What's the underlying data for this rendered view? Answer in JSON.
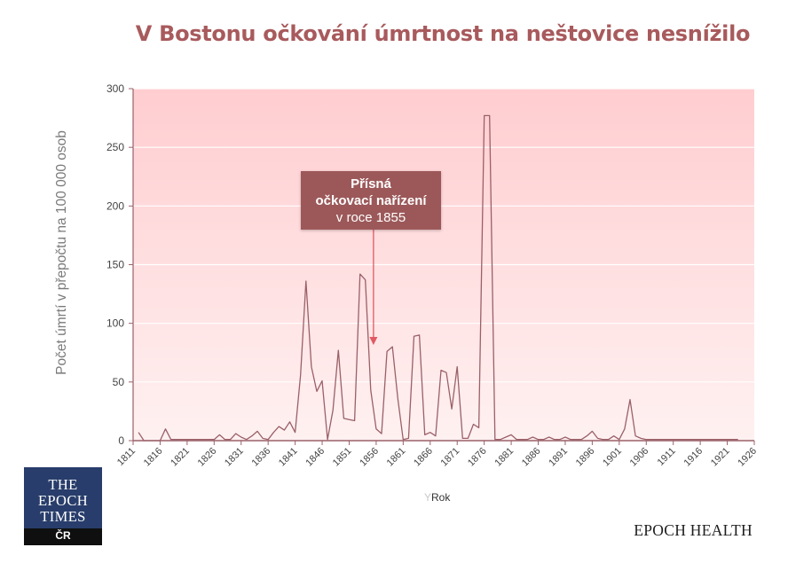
{
  "title": "V Bostonu očkování úmrtnost na neštovice nesnížilo",
  "callout": {
    "line1": "Přísná",
    "line2": "očkovací nařízení",
    "line3": "v roce 1855",
    "x": 1855.5,
    "y": 80
  },
  "logo": {
    "line1": "THE",
    "line2": "EPOCH",
    "line3": "TIMES",
    "country": "ČR"
  },
  "brand": "EPOCH HEALTH",
  "colors": {
    "title": "#a85a5c",
    "series": "#9a6068",
    "callout": "#9c5859",
    "arrow": "#e05a63",
    "plot_top": "#ffcdd0",
    "plot_bottom": "#fff1f1",
    "logo": "#283d6b"
  },
  "chart_data": {
    "type": "line",
    "title": "V Bostonu očkování úmrtnost na neštovice nesnížilo",
    "xlabel": "Rok",
    "xlabel_ghost": "Y",
    "ylabel": "Počet úmrtí  v přepočtu na 100 000 osob",
    "xlim": [
      1811,
      1926
    ],
    "ylim": [
      0,
      300
    ],
    "grid": true,
    "xticks": [
      1811,
      1816,
      1821,
      1826,
      1831,
      1836,
      1841,
      1846,
      1851,
      1856,
      1861,
      1866,
      1871,
      1876,
      1881,
      1886,
      1891,
      1896,
      1901,
      1906,
      1911,
      1916,
      1921,
      1926
    ],
    "yticks": [
      0,
      50,
      100,
      150,
      200,
      250,
      300
    ],
    "series": [
      {
        "x": [
          1812,
          1813,
          1814,
          1815,
          1816,
          1817,
          1818,
          1819,
          1820,
          1821,
          1822,
          1823,
          1824,
          1825,
          1826,
          1827,
          1828,
          1829,
          1830,
          1831,
          1832,
          1833,
          1834,
          1835,
          1836,
          1837,
          1838,
          1839,
          1840,
          1841,
          1842,
          1843,
          1844,
          1845,
          1846,
          1847,
          1848,
          1849,
          1850,
          1851,
          1852,
          1853,
          1854,
          1855,
          1856,
          1857,
          1858,
          1859,
          1860,
          1861,
          1862,
          1863,
          1864,
          1865,
          1866,
          1867,
          1868,
          1869,
          1870,
          1871,
          1872,
          1873,
          1874,
          1875,
          1876,
          1877,
          1878,
          1879,
          1880,
          1881,
          1882,
          1883,
          1884,
          1885,
          1886,
          1887,
          1888,
          1889,
          1890,
          1891,
          1892,
          1893,
          1894,
          1895,
          1896,
          1897,
          1898,
          1899,
          1900,
          1901,
          1902,
          1903,
          1904,
          1905,
          1906,
          1907,
          1908,
          1909,
          1910,
          1911,
          1912,
          1913,
          1914,
          1915,
          1916,
          1917,
          1918,
          1919,
          1920,
          1921,
          1922,
          1923
        ],
        "y": [
          7,
          0,
          0,
          0,
          0,
          10,
          1,
          1,
          1,
          1,
          1,
          1,
          1,
          1,
          1,
          5,
          1,
          1,
          6,
          3,
          1,
          4,
          8,
          2,
          1,
          7,
          12,
          9,
          16,
          7,
          56,
          136,
          63,
          42,
          51,
          1,
          26,
          77,
          19,
          18,
          17,
          142,
          137,
          43,
          10,
          6,
          76,
          80,
          36,
          1,
          2,
          89,
          90,
          5,
          7,
          4,
          60,
          58,
          27,
          63,
          2,
          2,
          14,
          11,
          277,
          277,
          1,
          1,
          3,
          5,
          1,
          1,
          1,
          3,
          1,
          1,
          3,
          1,
          1,
          3,
          1,
          1,
          1,
          4,
          8,
          2,
          1,
          1,
          4,
          1,
          10,
          35,
          4,
          2,
          1,
          1,
          1,
          1,
          1,
          1,
          1,
          1,
          1,
          1,
          1,
          1,
          1,
          1,
          1,
          1,
          1,
          1
        ]
      }
    ]
  }
}
